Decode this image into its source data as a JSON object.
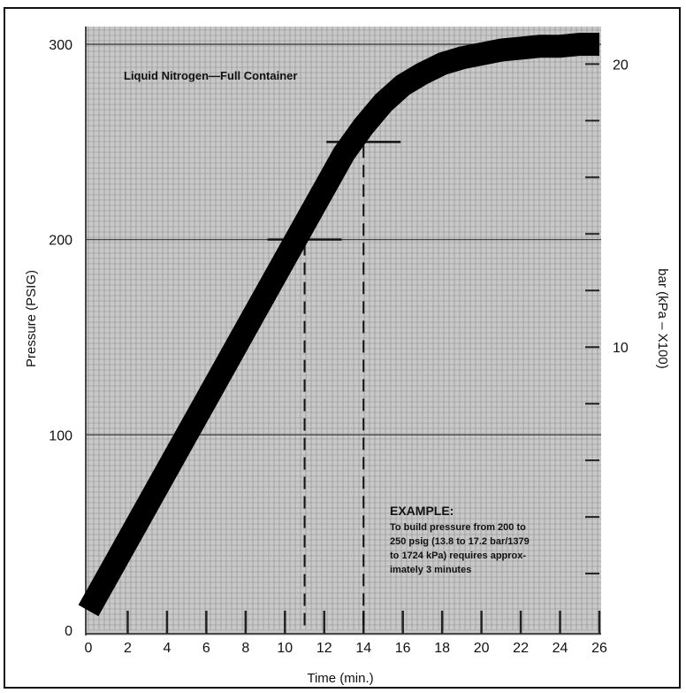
{
  "chart_data": {
    "type": "line",
    "title": "Liquid Nitrogen—Full Container",
    "xlabel": "Time (min.)",
    "ylabel": "Pressure (PSIG)",
    "y2label": "bar (kPa – X100)",
    "xlim": [
      0,
      26
    ],
    "ylim": [
      0,
      300
    ],
    "xticks": [
      0,
      2,
      4,
      6,
      8,
      10,
      12,
      14,
      16,
      18,
      20,
      22,
      24,
      26
    ],
    "yticks": [
      0,
      100,
      200,
      300
    ],
    "y2ticks": [
      10,
      20
    ],
    "grid": true,
    "series": [
      {
        "x": [
          0,
          2,
          4,
          6,
          8,
          10,
          11,
          12,
          13,
          14,
          15,
          16,
          17,
          18,
          19,
          20,
          21,
          22,
          23,
          24,
          25,
          26
        ],
        "y": [
          10,
          46,
          82,
          118,
          154,
          190,
          208,
          226,
          244,
          258,
          270,
          279,
          285,
          290,
          293,
          295,
          297,
          298,
          299,
          299,
          300,
          300
        ]
      }
    ],
    "annotations": [
      {
        "x": 11,
        "y": 200
      },
      {
        "x": 14,
        "y": 250
      }
    ],
    "note": {
      "heading": "EXAMPLE:",
      "lines": [
        "To build pressure from 200 to",
        "250 psig (13.8 to 17.2 bar/1379",
        "to 1724 kPa) requires approx-",
        "imately 3 minutes"
      ]
    }
  }
}
